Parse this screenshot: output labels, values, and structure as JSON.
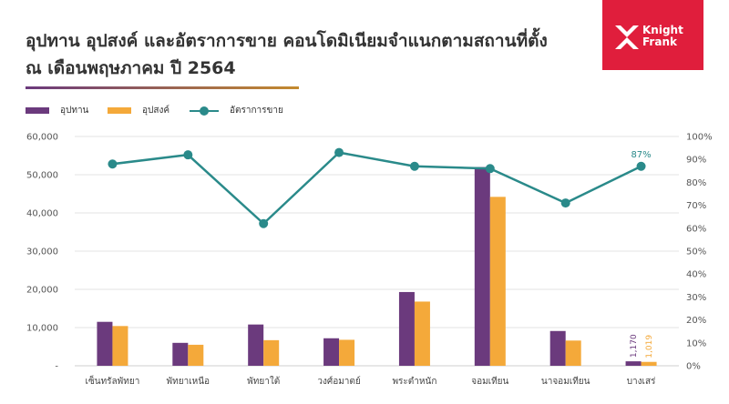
{
  "header": {
    "title_line1": "อุปทาน อุปสงค์ และอัตราการขาย คอนโดมิเนียมจำแนกตามสถานที่ตั้ง",
    "title_line2": "ณ เดือนพฤษภาคม ปี 2564",
    "logo_line1": "Knight",
    "logo_line2": "Frank"
  },
  "colors": {
    "supply": "#6b3a7d",
    "demand": "#f4a93a",
    "rate": "#2a8a8a",
    "grid": "#e3e3e3",
    "logo_bg": "#e01e3c"
  },
  "chart_data": {
    "type": "bar",
    "categories": [
      "เซ็นทรัลพัทยา",
      "พัทยาเหนือ",
      "พัทยาใต้",
      "วงศ์อมาตย์",
      "พระตำหนัก",
      "จอมเทียน",
      "นาจอมเทียน",
      "บางเสร่"
    ],
    "series": [
      {
        "name": "อุปทาน",
        "type": "bar",
        "axis": "left",
        "values": [
          11500,
          6000,
          10800,
          7200,
          19300,
          52000,
          9100,
          1170
        ]
      },
      {
        "name": "อุปสงค์",
        "type": "bar",
        "axis": "left",
        "values": [
          10400,
          5500,
          6700,
          6800,
          16800,
          44200,
          6600,
          1019
        ]
      },
      {
        "name": "อัตราการขาย",
        "type": "line",
        "axis": "right",
        "values": [
          88,
          92,
          62,
          93,
          87,
          86,
          71,
          87
        ]
      }
    ],
    "left_axis": {
      "ylim": [
        0,
        60000
      ],
      "ticks": [
        "-",
        "10,000",
        "20,000",
        "30,000",
        "40,000",
        "50,000",
        "60,000"
      ]
    },
    "right_axis": {
      "ylim": [
        0,
        100
      ],
      "ticks": [
        "0%",
        "10%",
        "20%",
        "30%",
        "40%",
        "50%",
        "60%",
        "70%",
        "80%",
        "90%",
        "100%"
      ]
    },
    "data_labels": {
      "bar_supply_last": "1,170",
      "bar_demand_last": "1,019",
      "rate_last": "87%"
    },
    "legend_position": "top-left",
    "grid": true
  }
}
